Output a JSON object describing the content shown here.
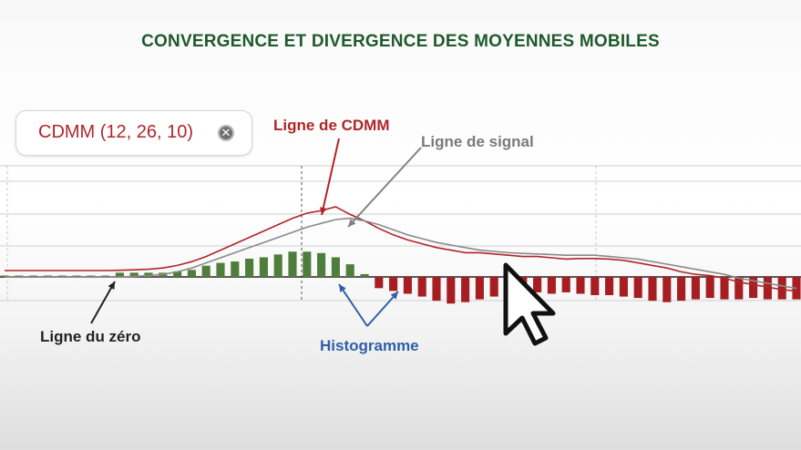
{
  "title": "CONVERGENCE ET DIVERGENCE DES MOYENNES MOBILES",
  "indicator": {
    "label": "CDMM (12, 26, 10)",
    "close_icon": "close-icon"
  },
  "annotations": {
    "macd_line": "Ligne de CDMM",
    "signal_line": "Ligne de signal",
    "zero_line": "Ligne du zéro",
    "histogram": "Histogramme"
  },
  "colors": {
    "title": "#1f5a2c",
    "macd": "#b1252a",
    "signal": "#8a8a8a",
    "hist_positive": "#4f7d3a",
    "hist_negative": "#a61e22",
    "histogram_label": "#2e5fa8"
  },
  "cursor_icon": "mouse-pointer-icon",
  "chart_data": {
    "type": "line",
    "title": "",
    "xlabel": "",
    "ylabel": "",
    "grid": true,
    "ylim": [
      -1.0,
      3.3
    ],
    "n_points": 56,
    "series": [
      {
        "name": "Ligne de CDMM",
        "role": "macd",
        "values": [
          0.25,
          0.25,
          0.25,
          0.25,
          0.25,
          0.25,
          0.25,
          0.25,
          0.26,
          0.28,
          0.3,
          0.35,
          0.45,
          0.6,
          0.8,
          1.05,
          1.3,
          1.55,
          1.8,
          2.05,
          2.3,
          2.5,
          2.6,
          2.75,
          2.45,
          2.2,
          1.9,
          1.65,
          1.45,
          1.3,
          1.15,
          1.05,
          0.95,
          0.95,
          0.9,
          0.85,
          0.8,
          0.8,
          0.75,
          0.7,
          0.72,
          0.72,
          0.7,
          0.65,
          0.55,
          0.45,
          0.35,
          0.2,
          0.1,
          0.05,
          -0.05,
          -0.2,
          -0.3,
          -0.4,
          -0.5,
          -0.55
        ]
      },
      {
        "name": "Ligne de signal",
        "role": "signal",
        "values": [
          0.0,
          0.0,
          0.0,
          0.0,
          0.0,
          0.0,
          0.0,
          0.0,
          0.0,
          0.02,
          0.05,
          0.1,
          0.2,
          0.35,
          0.55,
          0.75,
          0.95,
          1.15,
          1.35,
          1.55,
          1.75,
          1.95,
          2.1,
          2.25,
          2.3,
          2.2,
          2.05,
          1.85,
          1.65,
          1.5,
          1.35,
          1.25,
          1.15,
          1.05,
          1.0,
          0.95,
          0.92,
          0.9,
          0.88,
          0.85,
          0.85,
          0.85,
          0.8,
          0.75,
          0.7,
          0.6,
          0.5,
          0.4,
          0.3,
          0.2,
          0.1,
          -0.05,
          -0.15,
          -0.25,
          -0.35,
          -0.45
        ]
      }
    ],
    "histogram": [
      0.02,
      0.02,
      0.02,
      0.02,
      0.02,
      0.02,
      0.02,
      0.02,
      0.15,
      0.15,
      0.15,
      0.15,
      0.2,
      0.25,
      0.4,
      0.5,
      0.55,
      0.65,
      0.7,
      0.8,
      0.9,
      0.9,
      0.85,
      0.7,
      0.45,
      0.1,
      -0.4,
      -0.5,
      -0.6,
      -0.7,
      -0.85,
      -0.95,
      -0.9,
      -0.8,
      -0.7,
      -0.6,
      -0.5,
      -0.55,
      -0.6,
      -0.55,
      -0.6,
      -0.65,
      -0.65,
      -0.7,
      -0.75,
      -0.85,
      -0.9,
      -0.85,
      -0.8,
      -0.75,
      -0.8,
      -0.8,
      -0.75,
      -0.8,
      -0.8,
      -0.8
    ]
  }
}
